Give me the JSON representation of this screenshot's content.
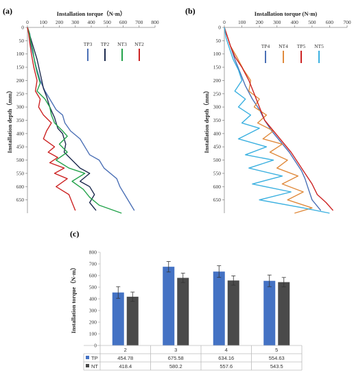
{
  "panels": {
    "a": "(a)",
    "b": "(b)",
    "c": "(c)"
  },
  "chart_data": [
    {
      "id": "a",
      "type": "line",
      "xlabel": "Installation torque（N·m）",
      "ylabel": "Installation depth（mm）",
      "xlim": [
        0,
        800
      ],
      "ylim": [
        0,
        700
      ],
      "x_ticks": [
        "0",
        "100",
        "200",
        "300",
        "400",
        "500",
        "600",
        "700",
        "800"
      ],
      "y_ticks": [
        "0",
        "50",
        "100",
        "150",
        "200",
        "250",
        "300",
        "350",
        "400",
        "450",
        "500",
        "550",
        "600",
        "650"
      ],
      "legend_position": "top-right",
      "series": [
        {
          "name": "TP3",
          "color": "#4a6fb5",
          "points": [
            [
              0,
              0
            ],
            [
              15,
              25
            ],
            [
              20,
              60
            ],
            [
              35,
              100
            ],
            [
              55,
              150
            ],
            [
              80,
              200
            ],
            [
              110,
              240
            ],
            [
              150,
              280
            ],
            [
              180,
              310
            ],
            [
              220,
              330
            ],
            [
              235,
              360
            ],
            [
              270,
              390
            ],
            [
              330,
              420
            ],
            [
              360,
              450
            ],
            [
              390,
              480
            ],
            [
              450,
              500
            ],
            [
              480,
              530
            ],
            [
              520,
              550
            ],
            [
              560,
              570
            ],
            [
              580,
              600
            ],
            [
              610,
              630
            ],
            [
              640,
              660
            ],
            [
              670,
              690
            ]
          ]
        },
        {
          "name": "TP2",
          "color": "#1c2a4e",
          "points": [
            [
              0,
              0
            ],
            [
              10,
              20
            ],
            [
              25,
              50
            ],
            [
              40,
              80
            ],
            [
              60,
              120
            ],
            [
              75,
              160
            ],
            [
              90,
              200
            ],
            [
              100,
              230
            ],
            [
              120,
              260
            ],
            [
              140,
              300
            ],
            [
              170,
              340
            ],
            [
              190,
              380
            ],
            [
              220,
              400
            ],
            [
              240,
              440
            ],
            [
              230,
              470
            ],
            [
              280,
              500
            ],
            [
              330,
              530
            ],
            [
              390,
              550
            ],
            [
              330,
              580
            ],
            [
              390,
              600
            ],
            [
              420,
              630
            ],
            [
              390,
              660
            ],
            [
              430,
              690
            ]
          ]
        },
        {
          "name": "NT3",
          "color": "#22a24a",
          "points": [
            [
              0,
              0
            ],
            [
              12,
              20
            ],
            [
              20,
              50
            ],
            [
              35,
              90
            ],
            [
              45,
              130
            ],
            [
              60,
              170
            ],
            [
              80,
              210
            ],
            [
              60,
              240
            ],
            [
              110,
              270
            ],
            [
              140,
              300
            ],
            [
              150,
              330
            ],
            [
              170,
              360
            ],
            [
              220,
              390
            ],
            [
              250,
              410
            ],
            [
              200,
              440
            ],
            [
              250,
              470
            ],
            [
              180,
              500
            ],
            [
              260,
              530
            ],
            [
              360,
              550
            ],
            [
              280,
              580
            ],
            [
              350,
              610
            ],
            [
              390,
              640
            ],
            [
              450,
              670
            ],
            [
              590,
              700
            ]
          ]
        },
        {
          "name": "NT2",
          "color": "#cc2222",
          "points": [
            [
              0,
              0
            ],
            [
              8,
              25
            ],
            [
              15,
              60
            ],
            [
              25,
              100
            ],
            [
              40,
              150
            ],
            [
              60,
              200
            ],
            [
              50,
              240
            ],
            [
              80,
              270
            ],
            [
              70,
              300
            ],
            [
              100,
              330
            ],
            [
              150,
              360
            ],
            [
              120,
              390
            ],
            [
              100,
              420
            ],
            [
              170,
              450
            ],
            [
              130,
              470
            ],
            [
              190,
              490
            ],
            [
              140,
              510
            ],
            [
              230,
              530
            ],
            [
              170,
              550
            ],
            [
              250,
              570
            ],
            [
              180,
              600
            ],
            [
              260,
              630
            ],
            [
              280,
              660
            ],
            [
              300,
              690
            ]
          ]
        }
      ]
    },
    {
      "id": "b",
      "type": "line",
      "xlabel": "Installation torque (N·m)",
      "ylabel": "Installation depth（mm）",
      "xlim": [
        0,
        700
      ],
      "ylim": [
        0,
        700
      ],
      "x_ticks": [
        "0",
        "100",
        "200",
        "300",
        "400",
        "500",
        "600",
        "700"
      ],
      "y_ticks": [
        "0",
        "50",
        "100",
        "150",
        "200",
        "250",
        "300",
        "350",
        "400",
        "450",
        "500",
        "550",
        "600",
        "650"
      ],
      "legend_position": "top-right",
      "series": [
        {
          "name": "TP4",
          "color": "#4a6fb5",
          "points": [
            [
              0,
              0
            ],
            [
              20,
              40
            ],
            [
              40,
              80
            ],
            [
              60,
              120
            ],
            [
              90,
              170
            ],
            [
              120,
              220
            ],
            [
              160,
              270
            ],
            [
              200,
              310
            ],
            [
              230,
              350
            ],
            [
              270,
              390
            ],
            [
              320,
              430
            ],
            [
              370,
              470
            ],
            [
              400,
              500
            ],
            [
              440,
              540
            ],
            [
              460,
              570
            ],
            [
              480,
              610
            ],
            [
              500,
              650
            ],
            [
              550,
              690
            ]
          ]
        },
        {
          "name": "NT4",
          "color": "#e08a3c",
          "points": [
            [
              0,
              0
            ],
            [
              15,
              30
            ],
            [
              35,
              70
            ],
            [
              70,
              110
            ],
            [
              110,
              160
            ],
            [
              150,
              200
            ],
            [
              140,
              240
            ],
            [
              200,
              270
            ],
            [
              170,
              300
            ],
            [
              240,
              330
            ],
            [
              190,
              360
            ],
            [
              280,
              390
            ],
            [
              220,
              420
            ],
            [
              330,
              440
            ],
            [
              260,
              470
            ],
            [
              360,
              500
            ],
            [
              300,
              530
            ],
            [
              420,
              560
            ],
            [
              330,
              590
            ],
            [
              450,
              620
            ],
            [
              360,
              650
            ],
            [
              500,
              680
            ],
            [
              400,
              700
            ]
          ]
        },
        {
          "name": "TP5",
          "color": "#cc2222",
          "points": [
            [
              0,
              0
            ],
            [
              15,
              30
            ],
            [
              35,
              70
            ],
            [
              60,
              110
            ],
            [
              100,
              150
            ],
            [
              140,
              200
            ],
            [
              170,
              250
            ],
            [
              200,
              300
            ],
            [
              230,
              350
            ],
            [
              280,
              390
            ],
            [
              330,
              430
            ],
            [
              380,
              470
            ],
            [
              420,
              510
            ],
            [
              460,
              550
            ],
            [
              500,
              590
            ],
            [
              530,
              630
            ],
            [
              580,
              660
            ],
            [
              620,
              690
            ]
          ]
        },
        {
          "name": "NT5",
          "color": "#3ab0e0",
          "points": [
            [
              0,
              0
            ],
            [
              10,
              40
            ],
            [
              30,
              80
            ],
            [
              50,
              120
            ],
            [
              80,
              160
            ],
            [
              100,
              200
            ],
            [
              60,
              240
            ],
            [
              120,
              270
            ],
            [
              80,
              300
            ],
            [
              150,
              330
            ],
            [
              100,
              360
            ],
            [
              200,
              380
            ],
            [
              80,
              420
            ],
            [
              240,
              450
            ],
            [
              120,
              480
            ],
            [
              280,
              500
            ],
            [
              140,
              530
            ],
            [
              330,
              560
            ],
            [
              160,
              590
            ],
            [
              380,
              620
            ],
            [
              200,
              650
            ],
            [
              450,
              680
            ],
            [
              600,
              700
            ]
          ]
        }
      ]
    },
    {
      "id": "c",
      "type": "bar",
      "ylabel": "Installation torque（N·m）",
      "ylim": [
        0,
        800
      ],
      "y_ticks": [
        "0",
        "100",
        "200",
        "300",
        "400",
        "500",
        "600",
        "700",
        "800"
      ],
      "categories": [
        "2",
        "3",
        "4",
        "5"
      ],
      "series": [
        {
          "name": "TP",
          "color": "#4472c4",
          "values": [
            454.78,
            675.58,
            634.16,
            554.63
          ],
          "labels": [
            "454.78",
            "675.58",
            "634.16",
            "554.63"
          ],
          "errors": [
            50,
            45,
            50,
            50
          ]
        },
        {
          "name": "NT",
          "color": "#4a4a4a",
          "values": [
            418.4,
            580.2,
            557.6,
            543.5
          ],
          "labels": [
            "418.4",
            "580.2",
            "557.6",
            "543.5"
          ],
          "errors": [
            40,
            40,
            40,
            40
          ]
        }
      ]
    }
  ]
}
